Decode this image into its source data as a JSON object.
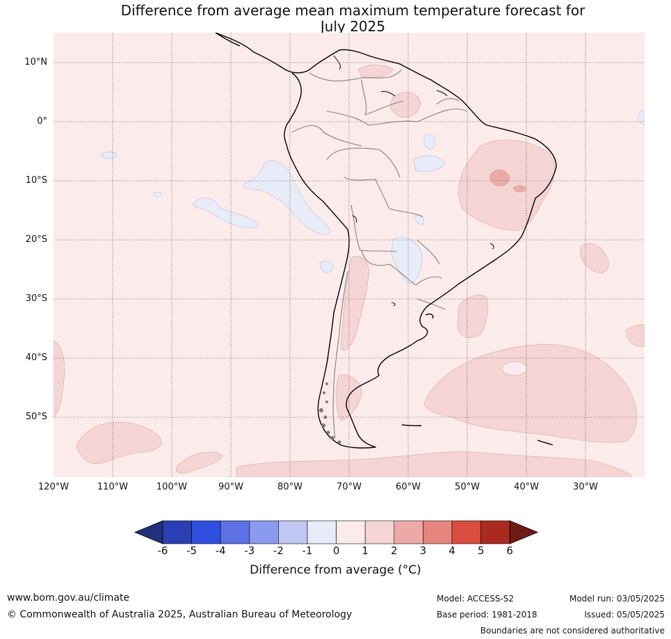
{
  "title": {
    "line1": "Difference from average mean maximum temperature forecast for",
    "line2": "July 2025"
  },
  "map": {
    "region": "South America",
    "lat_labels": [
      "10°N",
      "0°",
      "10°S",
      "20°S",
      "30°S",
      "40°S",
      "50°S"
    ],
    "lon_labels": [
      "120°W",
      "110°W",
      "100°W",
      "90°W",
      "80°W",
      "70°W",
      "60°W",
      "50°W",
      "40°W",
      "30°W"
    ],
    "gridlines": "dotted",
    "colors": {
      "background_0_to_1": "#fbebea",
      "band_1_to_2": "#f5d5d3",
      "band_2_to_3": "#ecaaa6",
      "band_neg1_to_0": "#e8ebf8",
      "coast": "#000000",
      "borders": "#808080"
    }
  },
  "colorbar": {
    "ticks": [
      "-6",
      "-5",
      "-4",
      "-3",
      "-2",
      "-1",
      "0",
      "1",
      "2",
      "3",
      "4",
      "5",
      "6"
    ],
    "colors": [
      "#222f7d",
      "#2a3fb2",
      "#2f4fe0",
      "#5e72e6",
      "#8a9aec",
      "#c1c8f4",
      "#e8ebf8",
      "#fbebea",
      "#f5d5d3",
      "#ecaaa6",
      "#e6857d",
      "#da4d3f",
      "#ab2a20",
      "#6e1a16"
    ],
    "label": "Difference from average (°C)"
  },
  "footer": {
    "website": "www.bom.gov.au/climate",
    "copyright": "© Commonwealth of Australia 2025, Australian Bureau of Meteorology",
    "model": "Model: ACCESS-S2",
    "base_period": "Base period: 1981-2018",
    "model_run": "Model run: 03/05/2025",
    "issued": "Issued: 05/05/2025",
    "boundaries_note": "Boundaries are not considered authoritative"
  }
}
